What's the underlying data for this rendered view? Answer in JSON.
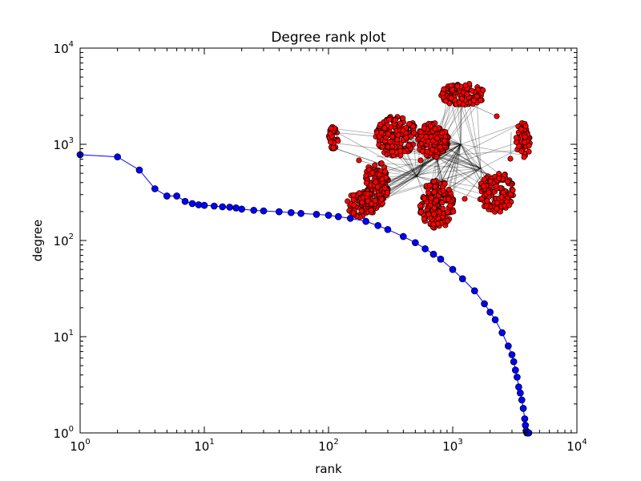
{
  "chart_data": {
    "type": "line",
    "title": "Degree rank plot",
    "xlabel": "rank",
    "ylabel": "degree",
    "xscale": "log",
    "yscale": "log",
    "xlim": [
      1,
      10000
    ],
    "ylim": [
      1,
      10000
    ],
    "x_tick_labels": [
      {
        "value": 1,
        "base": "10",
        "exp": "0"
      },
      {
        "value": 10,
        "base": "10",
        "exp": "1"
      },
      {
        "value": 100,
        "base": "10",
        "exp": "2"
      },
      {
        "value": 1000,
        "base": "10",
        "exp": "3"
      },
      {
        "value": 10000,
        "base": "10",
        "exp": "4"
      }
    ],
    "y_tick_labels": [
      {
        "value": 1,
        "base": "10",
        "exp": "0"
      },
      {
        "value": 10,
        "base": "10",
        "exp": "1"
      },
      {
        "value": 100,
        "base": "10",
        "exp": "2"
      },
      {
        "value": 1000,
        "base": "10",
        "exp": "3"
      },
      {
        "value": 10000,
        "base": "10",
        "exp": "4"
      }
    ],
    "grid": false,
    "series": [
      {
        "color": "#0000ff",
        "marker": "circle",
        "x": [
          1,
          2,
          3,
          4,
          5,
          6,
          7,
          8,
          9,
          10,
          12,
          14,
          16,
          18,
          20,
          25,
          30,
          40,
          50,
          60,
          80,
          100,
          120,
          150,
          200,
          250,
          300,
          400,
          500,
          600,
          700,
          800,
          1000,
          1200,
          1500,
          1800,
          2000,
          2200,
          2500,
          2800,
          3000,
          3100,
          3200,
          3300,
          3400,
          3500,
          3600,
          3700,
          3800,
          3850,
          3900,
          3950,
          4000,
          4050,
          4100
        ],
        "y": [
          780,
          740,
          540,
          345,
          290,
          290,
          255,
          242,
          235,
          232,
          228,
          224,
          222,
          218,
          212,
          206,
          203,
          199,
          195,
          191,
          187,
          183,
          177,
          170,
          158,
          143,
          130,
          110,
          95,
          82,
          72,
          64,
          50,
          40,
          30,
          22,
          18,
          15,
          11,
          8,
          6.5,
          5.5,
          4.5,
          3.8,
          3,
          2.6,
          2.2,
          1.8,
          1.4,
          1.2,
          1.05,
          1,
          1,
          1,
          1
        ]
      }
    ],
    "inset": {
      "type": "network",
      "node_color": "#ff0000",
      "edge_color": "#000000"
    }
  }
}
